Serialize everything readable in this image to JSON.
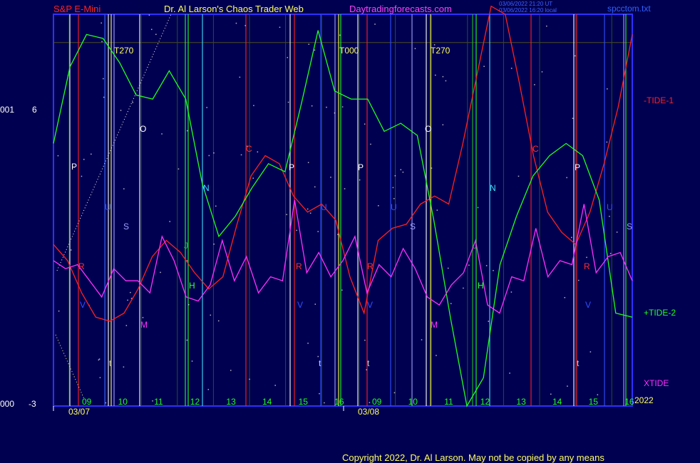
{
  "header": {
    "instrument": "S&P E-Mini",
    "author": "Dr. Al Larson's Chaos Trader Web",
    "site": "Daytradingforecasts.com",
    "stamp_line1": "03/06/2022 21:20 UT",
    "stamp_line2": "03/06/2022 16:20 local",
    "filename": "spcctom.txt"
  },
  "footer": {
    "copyright": "Copyright 2022, Dr. Al Larson. May not be copied by any means"
  },
  "colors": {
    "background": "#000050",
    "frame": "#3030ff",
    "red_tide": "#ff2020",
    "green_tide": "#20ff20",
    "xtide": "#ff30ff",
    "hour_text": "#20ff20",
    "date_text": "#ffff60",
    "label_text": "#ffff60"
  },
  "chart_data": {
    "type": "line",
    "y_axis": {
      "top_label": "6",
      "bottom_label": "-3",
      "top_left": "001",
      "bottom_left": "000",
      "ylim": [
        -3,
        6.7
      ]
    },
    "x_axis": {
      "hour_labels": [
        "09",
        "10",
        "11",
        "12",
        "13",
        "14",
        "15",
        "16",
        "09",
        "10",
        "11",
        "12",
        "13",
        "14",
        "15",
        "16"
      ],
      "date_labels": [
        "03/07",
        "03/08"
      ],
      "year_label": "2022"
    },
    "series_labels": {
      "red": "-TIDE-1",
      "green": "+TIDE-2",
      "magenta": "XTIDE"
    },
    "markers": {
      "top": [
        "T270",
        "T000",
        "T270"
      ],
      "letters": [
        {
          "text": "P",
          "color": "#ffffff"
        },
        {
          "text": "O",
          "color": "#ffffff"
        },
        {
          "text": "R",
          "color": "#ff3030"
        },
        {
          "text": "U",
          "color": "#3050ff"
        },
        {
          "text": "S",
          "color": "#a0a0ff"
        },
        {
          "text": "V",
          "color": "#3050ff"
        },
        {
          "text": "M",
          "color": "#ff30ff"
        },
        {
          "text": "t",
          "color": "#cccccc"
        },
        {
          "text": "N",
          "color": "#40e0ff"
        },
        {
          "text": "J",
          "color": "#20c020"
        },
        {
          "text": "H",
          "color": "#40ff40"
        },
        {
          "text": "C",
          "color": "#ff3030"
        },
        {
          "text": "P",
          "color": "#ffffff"
        },
        {
          "text": "U",
          "color": "#3050ff"
        },
        {
          "text": "R",
          "color": "#ff3030"
        },
        {
          "text": "V",
          "color": "#3050ff"
        },
        {
          "text": "t",
          "color": "#cccccc"
        },
        {
          "text": "P",
          "color": "#ffffff"
        },
        {
          "text": "U",
          "color": "#3050ff"
        },
        {
          "text": "S",
          "color": "#a0a0ff"
        },
        {
          "text": "R",
          "color": "#ff3030"
        },
        {
          "text": "V",
          "color": "#3050ff"
        },
        {
          "text": "t",
          "color": "#cccccc"
        },
        {
          "text": "O",
          "color": "#ffffff"
        },
        {
          "text": "M",
          "color": "#ff30ff"
        },
        {
          "text": "N",
          "color": "#40e0ff"
        },
        {
          "text": "J",
          "color": "#20c020"
        },
        {
          "text": "H",
          "color": "#40ff40"
        },
        {
          "text": "C",
          "color": "#ff3030"
        },
        {
          "text": "P",
          "color": "#ffffff"
        },
        {
          "text": "U",
          "color": "#3050ff"
        },
        {
          "text": "S",
          "color": "#a0a0ff"
        },
        {
          "text": "R",
          "color": "#ff3030"
        },
        {
          "text": "V",
          "color": "#3050ff"
        },
        {
          "text": "t",
          "color": "#cccccc"
        }
      ]
    },
    "series": [
      {
        "name": "-TIDE-1",
        "color": "#ff2020",
        "values": [
          1.0,
          0.6,
          -0.2,
          -0.8,
          -0.9,
          -0.7,
          -0.1,
          0.7,
          1.1,
          0.8,
          0.3,
          -0.1,
          0.2,
          1.5,
          2.7,
          3.2,
          3.0,
          2.2,
          1.8,
          2.0,
          1.6,
          0.2,
          -0.7,
          1.1,
          1.4,
          1.5,
          2.0,
          2.2,
          2.0,
          3.5,
          5.2,
          6.9,
          6.7,
          5.0,
          3.2,
          1.8,
          1.3,
          1.0,
          1.8,
          3.0,
          4.4,
          6.2
        ]
      },
      {
        "name": "+TIDE-2",
        "color": "#20ff20",
        "values": [
          3.5,
          5.4,
          6.2,
          6.1,
          5.5,
          4.7,
          4.6,
          5.3,
          4.6,
          2.5,
          1.2,
          1.7,
          2.4,
          3.0,
          2.8,
          4.5,
          6.3,
          4.8,
          4.6,
          4.6,
          3.8,
          4.0,
          3.7,
          1.6,
          -0.8,
          -3.0,
          -2.3,
          0.5,
          1.7,
          2.7,
          3.2,
          3.5,
          3.2,
          2.1,
          -0.7,
          -0.8
        ]
      },
      {
        "name": "XTIDE",
        "color": "#ff30ff",
        "values": [
          0.6,
          0.4,
          0.5,
          0.1,
          -0.3,
          0.4,
          0.1,
          0.1,
          -0.2,
          1.2,
          0.6,
          -0.3,
          -0.4,
          0.0,
          1.1,
          0.1,
          0.7,
          -0.2,
          0.2,
          0.1,
          2.1,
          0.3,
          0.8,
          0.2,
          0.6,
          1.2,
          -0.2,
          0.5,
          0.2,
          0.9,
          0.4,
          -0.3,
          -0.5,
          0.0,
          0.3,
          1.1,
          -0.5,
          -0.7,
          0.2,
          0.1,
          1.4,
          0.2,
          0.6,
          0.5,
          2.0,
          0.3,
          0.7,
          0.8,
          0.1
        ]
      }
    ]
  }
}
